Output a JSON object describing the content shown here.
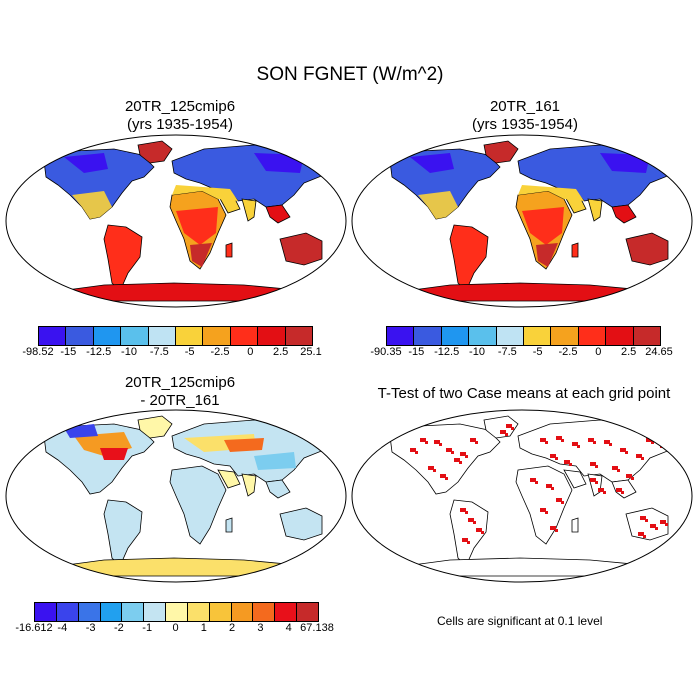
{
  "title": "SON FGNET (W/m^2)",
  "panels": [
    {
      "id": "p1",
      "title1": "20TR_125cmip6",
      "title2": "(yrs 1935-1954)",
      "scheme": "abs"
    },
    {
      "id": "p2",
      "title1": "20TR_161",
      "title2": "(yrs 1935-1954)",
      "scheme": "abs"
    },
    {
      "id": "p3",
      "title1": "20TR_125cmip6",
      "title2": "- 20TR_161",
      "scheme": "diff"
    },
    {
      "id": "p4",
      "title1": "T-Test of two Case means at each grid point",
      "title2": "",
      "scheme": "ttest"
    }
  ],
  "colorbars": [
    {
      "id": "cb1",
      "colors": [
        "#3a12f0",
        "#3a5ae0",
        "#1f96f0",
        "#5ac0ec",
        "#bfe3f3",
        "#f9d23a",
        "#f5a21e",
        "#ff2e1a",
        "#e30f14",
        "#c62a2a"
      ],
      "labels": [
        "-98.52",
        "-15",
        "-12.5",
        "-10",
        "-7.5",
        "-5",
        "-2.5",
        "0",
        "2.5",
        "25.1"
      ]
    },
    {
      "id": "cb2",
      "colors": [
        "#3a12f0",
        "#3a5ae0",
        "#1f96f0",
        "#5ac0ec",
        "#bfe3f3",
        "#f9d23a",
        "#f5a21e",
        "#ff2e1a",
        "#e30f14",
        "#c62a2a"
      ],
      "labels": [
        "-90.35",
        "-15",
        "-12.5",
        "-10",
        "-7.5",
        "-5",
        "-2.5",
        "0",
        "2.5",
        "24.65"
      ]
    },
    {
      "id": "cb3",
      "colors": [
        "#3a12f0",
        "#3a44ec",
        "#3a74e8",
        "#21a0ef",
        "#7ccdef",
        "#c4e4f2",
        "#fff7a8",
        "#fbe06a",
        "#f8c43a",
        "#f59a22",
        "#f46a1e",
        "#e8101a",
        "#c62a2a"
      ],
      "labels": [
        "-16.612",
        "-4",
        "-3",
        "-2",
        "-1",
        "0",
        "1",
        "2",
        "3",
        "4",
        "67.138"
      ]
    }
  ],
  "note": "Cells are significant at 0.1 level",
  "palette": {
    "land_outline": "#000000",
    "ocean": "#ffffff",
    "sig": "#e30f14"
  }
}
